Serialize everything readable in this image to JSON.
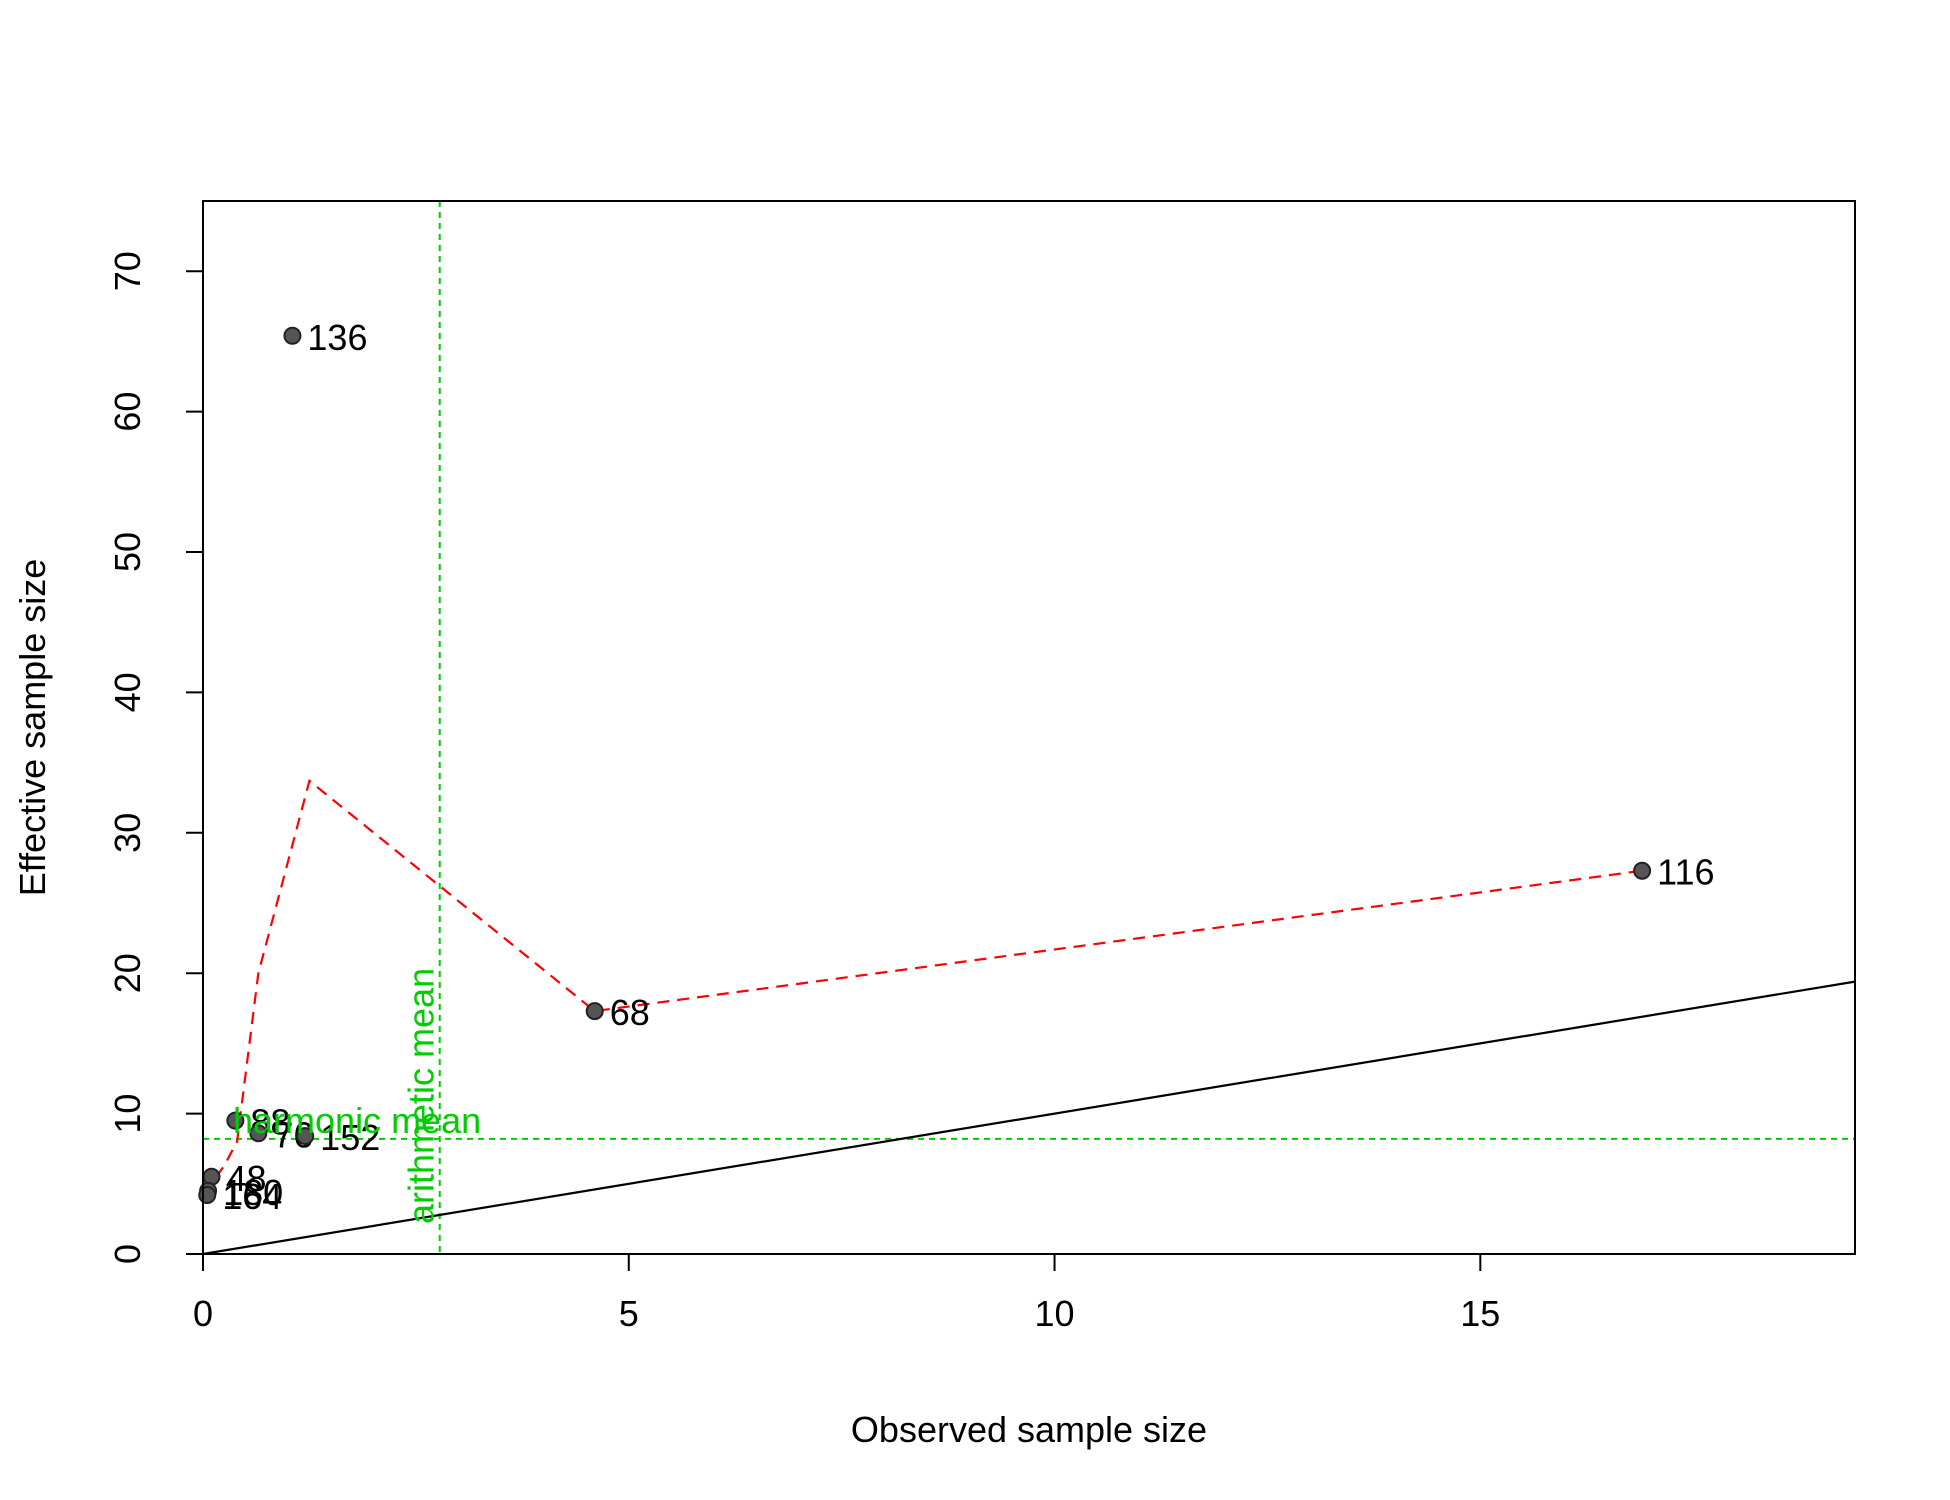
{
  "chart_data": {
    "type": "scatter",
    "title": "",
    "xlabel": "Observed sample size",
    "ylabel": "Effective sample size",
    "xlim": [
      0,
      19.4
    ],
    "ylim": [
      0,
      75
    ],
    "x_ticks": [
      0,
      5,
      10,
      15
    ],
    "y_ticks": [
      0,
      10,
      20,
      30,
      40,
      50,
      60,
      70
    ],
    "grid": false,
    "points": [
      {
        "label": "136",
        "x": 1.05,
        "y": 65.4
      },
      {
        "label": "116",
        "x": 16.9,
        "y": 27.3
      },
      {
        "label": "68",
        "x": 4.6,
        "y": 17.3
      },
      {
        "label": "88",
        "x": 0.38,
        "y": 9.5
      },
      {
        "label": "76",
        "x": 0.65,
        "y": 8.6
      },
      {
        "label": "152",
        "x": 1.2,
        "y": 8.4
      },
      {
        "label": "48",
        "x": 0.1,
        "y": 5.5
      },
      {
        "label": "180",
        "x": 0.06,
        "y": 4.5
      },
      {
        "label": "164",
        "x": 0.05,
        "y": 4.2
      }
    ],
    "smooth_line": {
      "color": "#ff0000",
      "style": "dashed",
      "x": [
        0.05,
        0.1,
        0.25,
        0.4,
        0.65,
        1.25,
        4.6,
        16.9
      ],
      "y": [
        4.2,
        5.0,
        6.3,
        8.0,
        20.0,
        33.7,
        17.3,
        27.3
      ]
    },
    "identity_line": {
      "color": "#000000",
      "slope": 1,
      "intercept": 0
    },
    "reference_lines": [
      {
        "orientation": "vertical",
        "value": 2.78,
        "label": "arithmetic mean",
        "color": "#00cc00"
      },
      {
        "orientation": "horizontal",
        "value": 8.2,
        "label": "harmonic mean",
        "color": "#00cc00"
      }
    ]
  }
}
